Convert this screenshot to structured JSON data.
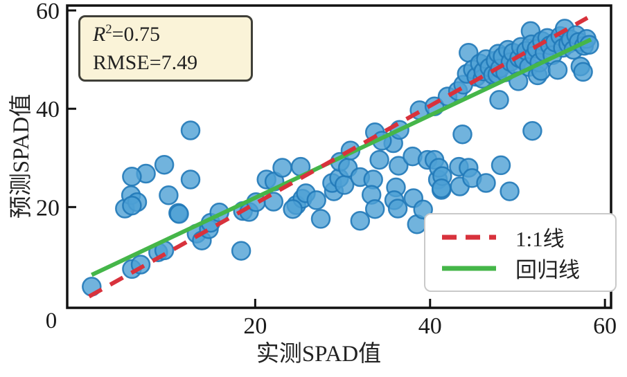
{
  "figure": {
    "annotation": {
      "r2_var": "R",
      "r2_exp": "2",
      "r2_rest": "=0.75",
      "line2": "RMSE=7.49"
    },
    "legend": {
      "position": "lower right",
      "items": [
        {
          "label": "1:1线",
          "style": "dashed"
        },
        {
          "label": "回归线",
          "style": "solid"
        }
      ]
    }
  },
  "chart_data": {
    "type": "scatter",
    "title": "",
    "xlabel": "实测SPAD值",
    "ylabel": "预测SPAD值",
    "xlim": [
      -1.5,
      60.7
    ],
    "ylim": [
      -0.5,
      61.0
    ],
    "x_ticks": [
      20,
      40,
      60
    ],
    "y_ticks": [
      20,
      40,
      60
    ],
    "origin_label": "0",
    "grid": false,
    "legend_position": "lower right",
    "stats": {
      "r_squared": 0.75,
      "rmse": 7.49
    },
    "points": [
      [
        1.3,
        3.8
      ],
      [
        5.9,
        7.4
      ],
      [
        6.9,
        8.3
      ],
      [
        8.9,
        10.8
      ],
      [
        9.6,
        11.2
      ],
      [
        13.3,
        14.6
      ],
      [
        13.9,
        13.2
      ],
      [
        14.7,
        15.5
      ],
      [
        14.9,
        16.8
      ],
      [
        15.9,
        18.9
      ],
      [
        18.6,
        19.2
      ],
      [
        18.4,
        11.1
      ],
      [
        11.2,
        18.8
      ],
      [
        5.1,
        19.7
      ],
      [
        12.6,
        35.6
      ],
      [
        9.6,
        28.6
      ],
      [
        7.5,
        26.8
      ],
      [
        5.9,
        26.2
      ],
      [
        12.6,
        25.6
      ],
      [
        10.1,
        22.4
      ],
      [
        5.8,
        22.4
      ],
      [
        6.5,
        21.0
      ],
      [
        5.9,
        20.3
      ],
      [
        11.3,
        18.6
      ],
      [
        19.3,
        19.0
      ],
      [
        20.1,
        21.0
      ],
      [
        22.1,
        21.1
      ],
      [
        21.3,
        25.6
      ],
      [
        22.2,
        25.2
      ],
      [
        23.1,
        28.0
      ],
      [
        25.2,
        28.2
      ],
      [
        24.7,
        20.4
      ],
      [
        25.4,
        21.7
      ],
      [
        25.8,
        22.8
      ],
      [
        27.0,
        21.4
      ],
      [
        27.5,
        17.6
      ],
      [
        24.3,
        19.6
      ],
      [
        29.0,
        23.2
      ],
      [
        28.8,
        24.9
      ],
      [
        29.6,
        25.9
      ],
      [
        30.2,
        24.5
      ],
      [
        29.7,
        29.2
      ],
      [
        30.6,
        28.0
      ],
      [
        32.0,
        26.1
      ],
      [
        32.0,
        17.2
      ],
      [
        33.5,
        25.6
      ],
      [
        33.3,
        22.5
      ],
      [
        33.7,
        19.6
      ],
      [
        34.2,
        29.6
      ],
      [
        35.8,
        33.0
      ],
      [
        36.4,
        28.4
      ],
      [
        36.1,
        24.0
      ],
      [
        35.9,
        21.4
      ],
      [
        36.3,
        19.7
      ],
      [
        38.0,
        30.3
      ],
      [
        38.1,
        21.8
      ],
      [
        38.5,
        16.5
      ],
      [
        39.2,
        19.5
      ],
      [
        39.7,
        29.6
      ],
      [
        40.9,
        25.6
      ],
      [
        41.3,
        23.5
      ],
      [
        30.9,
        31.5
      ],
      [
        33.7,
        35.2
      ],
      [
        34.5,
        33.5
      ],
      [
        36.5,
        35.7
      ],
      [
        38.8,
        39.7
      ],
      [
        40.5,
        40.5
      ],
      [
        42.0,
        42.5
      ],
      [
        43.2,
        43.6
      ],
      [
        40.5,
        29.6
      ],
      [
        41.0,
        28.0
      ],
      [
        41.4,
        26.3
      ],
      [
        41.3,
        23.8
      ],
      [
        43.3,
        28.2
      ],
      [
        44.4,
        28.0
      ],
      [
        43.4,
        24.2
      ],
      [
        44.8,
        25.9
      ],
      [
        46.4,
        24.9
      ],
      [
        48.1,
        28.5
      ],
      [
        49.1,
        23.2
      ],
      [
        43.7,
        34.8
      ],
      [
        51.7,
        35.5
      ],
      [
        43.8,
        44.9
      ],
      [
        44.2,
        47.1
      ],
      [
        44.4,
        51.4
      ],
      [
        44.9,
        48.0
      ],
      [
        45.3,
        46.5
      ],
      [
        45.7,
        49.2
      ],
      [
        46.0,
        46.1
      ],
      [
        46.1,
        47.6
      ],
      [
        46.4,
        50.1
      ],
      [
        46.8,
        48.4
      ],
      [
        47.2,
        46.9
      ],
      [
        47.5,
        49.8
      ],
      [
        47.7,
        47.0
      ],
      [
        47.8,
        51.2
      ],
      [
        47.9,
        41.8
      ],
      [
        48.0,
        48.2
      ],
      [
        48.3,
        50.6
      ],
      [
        48.6,
        47.4
      ],
      [
        48.9,
        52.0
      ],
      [
        49.2,
        49.5
      ],
      [
        49.5,
        51.4
      ],
      [
        49.8,
        48.8
      ],
      [
        50.1,
        45.6
      ],
      [
        50.2,
        50.3
      ],
      [
        50.4,
        52.6
      ],
      [
        50.7,
        49.9
      ],
      [
        51.0,
        51.8
      ],
      [
        51.3,
        48.5
      ],
      [
        51.5,
        55.8
      ],
      [
        51.6,
        53.1
      ],
      [
        51.9,
        50.8
      ],
      [
        52.2,
        52.2
      ],
      [
        52.3,
        46.8
      ],
      [
        52.5,
        49.4
      ],
      [
        52.7,
        47.7
      ],
      [
        52.8,
        53.8
      ],
      [
        53.1,
        51.5
      ],
      [
        53.4,
        54.4
      ],
      [
        53.7,
        52.9
      ],
      [
        54.0,
        50.9
      ],
      [
        54.3,
        53.5
      ],
      [
        54.6,
        47.9
      ],
      [
        54.9,
        54.8
      ],
      [
        55.2,
        52.4
      ],
      [
        55.4,
        56.3
      ],
      [
        55.8,
        53.2
      ],
      [
        56.1,
        54.1
      ],
      [
        56.4,
        52.0
      ],
      [
        56.7,
        55.0
      ],
      [
        57.0,
        53.6
      ],
      [
        57.2,
        48.6
      ],
      [
        57.5,
        47.5
      ],
      [
        57.6,
        52.8
      ],
      [
        57.9,
        54.2
      ],
      [
        58.2,
        53.0
      ]
    ],
    "lines": [
      {
        "name": "1:1线",
        "type": "dashed",
        "color": "#d8323c",
        "x": [
          1.0,
          58.0
        ],
        "y": [
          1.8,
          58.5
        ]
      },
      {
        "name": "回归线",
        "type": "solid",
        "color": "#45b649",
        "x": [
          1.3,
          58.4
        ],
        "y": [
          6.2,
          54.1
        ]
      }
    ],
    "colors": {
      "marker_fill": "#4da0d4",
      "marker_edge": "#2179b8",
      "one_to_one": "#d8323c",
      "regression": "#45b649",
      "annotation_bg": "#faf3d8",
      "annotation_border": "#3f3f38",
      "axis": "#111111"
    }
  }
}
